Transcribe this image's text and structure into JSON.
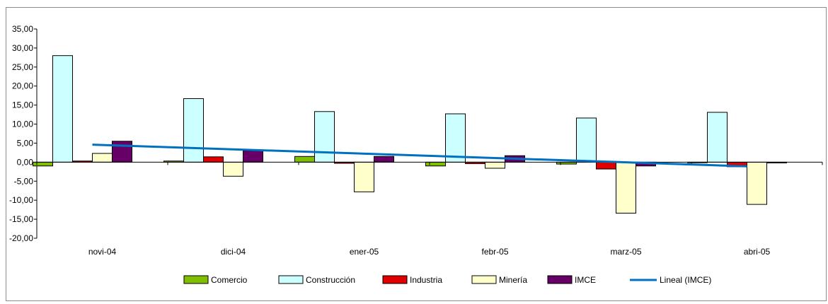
{
  "chart_data": {
    "type": "bar",
    "categories": [
      "novi-04",
      "dici-04",
      "ener-05",
      "febr-05",
      "marz-05",
      "abri-05"
    ],
    "series": [
      {
        "name": "Comercio",
        "color": "#7fbf00",
        "values": [
          -1.0,
          0.3,
          1.5,
          -1.0,
          -0.5,
          -0.1
        ]
      },
      {
        "name": "Construcción",
        "color": "#ccffff",
        "values": [
          28.0,
          16.7,
          13.3,
          12.7,
          11.6,
          13.1
        ]
      },
      {
        "name": "Industria",
        "color": "#e00000",
        "values": [
          0.3,
          1.4,
          -0.3,
          -0.4,
          -1.8,
          -1.2
        ]
      },
      {
        "name": "Minería",
        "color": "#ffffcc",
        "values": [
          2.3,
          -3.7,
          -7.8,
          -1.6,
          -13.4,
          -11.1
        ]
      },
      {
        "name": "IMCE",
        "color": "#660066",
        "values": [
          5.5,
          3.0,
          1.5,
          1.7,
          -1.0,
          -0.2
        ]
      }
    ],
    "trendline": {
      "name": "Lineal  (IMCE)",
      "color": "#0070c0",
      "start": 4.6,
      "end": -1.1
    },
    "ylim": [
      -20,
      35
    ],
    "yticks": [
      "35,00",
      "30,00",
      "25,00",
      "20,00",
      "15,00",
      "10,00",
      "5,00",
      "0,00",
      "-5,00",
      "-10,00",
      "-15,00",
      "-20,00"
    ],
    "ytick_values": [
      35,
      30,
      25,
      20,
      15,
      10,
      5,
      0,
      -5,
      -10,
      -15,
      -20
    ],
    "legend": [
      "Comercio",
      "Construcción",
      "Industria",
      "Minería",
      "IMCE",
      "Lineal  (IMCE)"
    ],
    "legend_position": "bottom",
    "grid": false
  }
}
